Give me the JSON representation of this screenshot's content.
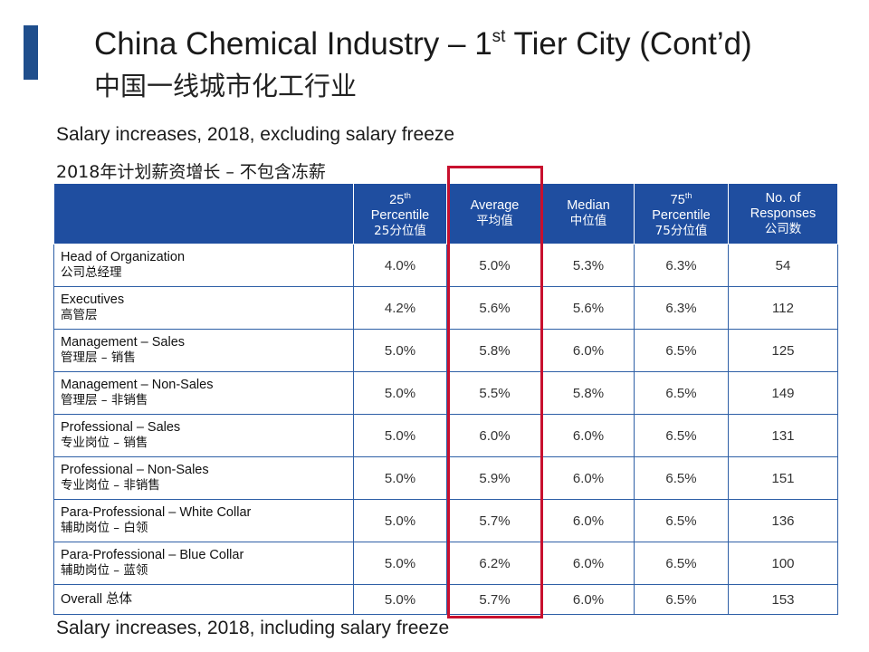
{
  "slide": {
    "title_prefix": "China Chemical Industry – 1",
    "title_sup": "st",
    "title_suffix": " Tier City (Cont’d)",
    "subtitle_cn": "中国一线城市化工行业",
    "heading_en": "Salary increases, 2018, excluding salary freeze",
    "heading_cn": "2018年计划薪资增长 – 不包含冻薪",
    "footer_en": "Salary increases, 2018, including salary freeze",
    "colors": {
      "accent": "#1f4e8c",
      "header_bg": "#1f4ea0",
      "highlight": "#c8102e"
    }
  },
  "table": {
    "headers": {
      "p25": {
        "num": "25",
        "sup": "th",
        "line2": "Percentile",
        "line3": "25分位值"
      },
      "avg": {
        "line1": "Average",
        "line2": "平均值"
      },
      "median": {
        "line1": "Median",
        "line2": "中位值"
      },
      "p75": {
        "num": "75",
        "sup": "th",
        "line2": "Percentile",
        "line3": "75分位值"
      },
      "count": {
        "line1": "No. of",
        "line2": "Responses",
        "line3": "公司数"
      }
    },
    "rows": [
      {
        "en": "Head of Organization",
        "cn": "公司总经理",
        "p25": "4.0%",
        "avg": "5.0%",
        "median": "5.3%",
        "p75": "6.3%",
        "count": "54"
      },
      {
        "en": "Executives",
        "cn": "高管层",
        "p25": "4.2%",
        "avg": "5.6%",
        "median": "5.6%",
        "p75": "6.3%",
        "count": "112"
      },
      {
        "en": "Management – Sales",
        "cn": "管理层 – 销售",
        "p25": "5.0%",
        "avg": "5.8%",
        "median": "6.0%",
        "p75": "6.5%",
        "count": "125"
      },
      {
        "en": "Management – Non-Sales",
        "cn": "管理层 – 非销售",
        "p25": "5.0%",
        "avg": "5.5%",
        "median": "5.8%",
        "p75": "6.5%",
        "count": "149"
      },
      {
        "en": "Professional – Sales",
        "cn": "专业岗位 – 销售",
        "p25": "5.0%",
        "avg": "6.0%",
        "median": "6.0%",
        "p75": "6.5%",
        "count": "131"
      },
      {
        "en": "Professional – Non-Sales",
        "cn": "专业岗位 – 非销售",
        "p25": "5.0%",
        "avg": "5.9%",
        "median": "6.0%",
        "p75": "6.5%",
        "count": "151"
      },
      {
        "en": "Para-Professional – White Collar",
        "cn": "辅助岗位 – 白领",
        "p25": "5.0%",
        "avg": "5.7%",
        "median": "6.0%",
        "p75": "6.5%",
        "count": "136"
      },
      {
        "en": "Para-Professional – Blue Collar",
        "cn": "辅助岗位 – 蓝领",
        "p25": "5.0%",
        "avg": "6.2%",
        "median": "6.0%",
        "p75": "6.5%",
        "count": "100"
      }
    ],
    "overall": {
      "label": "Overall 总体",
      "p25": "5.0%",
      "avg": "5.7%",
      "median": "6.0%",
      "p75": "6.5%",
      "count": "153"
    }
  }
}
